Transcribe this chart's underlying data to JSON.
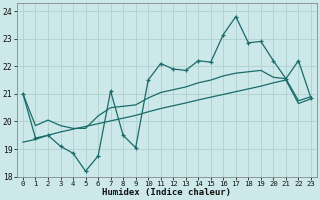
{
  "xlabel": "Humidex (Indice chaleur)",
  "bg_color": "#cce8e8",
  "grid_color": "#b0d0d0",
  "line_color": "#1a6b6b",
  "xlim": [
    -0.5,
    23.5
  ],
  "ylim": [
    18,
    24.3
  ],
  "yticks": [
    18,
    19,
    20,
    21,
    22,
    23,
    24
  ],
  "xticks": [
    0,
    1,
    2,
    3,
    4,
    5,
    6,
    7,
    8,
    9,
    10,
    11,
    12,
    13,
    14,
    15,
    16,
    17,
    18,
    19,
    20,
    21,
    22,
    23
  ],
  "hours": [
    0,
    1,
    2,
    3,
    4,
    5,
    6,
    7,
    8,
    9,
    10,
    11,
    12,
    13,
    14,
    15,
    16,
    17,
    18,
    19,
    20,
    21,
    22,
    23
  ],
  "line_zigzag": [
    21.0,
    19.4,
    19.5,
    19.1,
    18.85,
    18.2,
    18.75,
    21.1,
    19.5,
    19.05,
    21.5,
    22.1,
    21.9,
    21.85,
    22.2,
    22.15,
    23.15,
    23.8,
    22.85,
    22.9,
    22.2,
    21.55,
    22.2,
    20.85
  ],
  "line_upper": [
    21.0,
    19.85,
    20.05,
    19.85,
    19.75,
    19.75,
    20.2,
    20.5,
    20.55,
    20.6,
    20.85,
    21.05,
    21.15,
    21.25,
    21.4,
    21.5,
    21.65,
    21.75,
    21.8,
    21.85,
    21.6,
    21.55,
    20.75,
    20.9
  ],
  "line_lower": [
    19.25,
    19.35,
    19.5,
    19.62,
    19.72,
    19.82,
    19.92,
    20.02,
    20.12,
    20.22,
    20.35,
    20.47,
    20.57,
    20.67,
    20.78,
    20.88,
    20.98,
    21.08,
    21.18,
    21.28,
    21.4,
    21.5,
    20.65,
    20.82
  ]
}
